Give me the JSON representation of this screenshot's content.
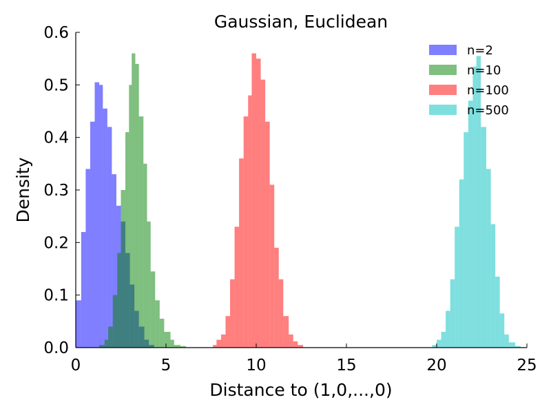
{
  "chart_data": {
    "type": "bar",
    "title": "Gaussian, Euclidean",
    "xlabel": "Distance to (1,0,...,0)",
    "ylabel": "Density",
    "xlim": [
      0,
      25
    ],
    "ylim": [
      0,
      0.6
    ],
    "xticks": [
      "0",
      "5",
      "10",
      "15",
      "20",
      "25"
    ],
    "yticks": [
      "0.0",
      "0.1",
      "0.2",
      "0.3",
      "0.4",
      "0.5",
      "0.6"
    ],
    "grid": false,
    "legend_position": "top-right",
    "series": [
      {
        "name": "n=2",
        "color": "#0000ff",
        "opacity": 0.5,
        "bins": [
          [
            0.0,
            0.3,
            0.09
          ],
          [
            0.3,
            0.55,
            0.22
          ],
          [
            0.55,
            0.8,
            0.34
          ],
          [
            0.8,
            1.05,
            0.43
          ],
          [
            1.05,
            1.3,
            0.505
          ],
          [
            1.3,
            1.5,
            0.5
          ],
          [
            1.5,
            1.75,
            0.455
          ],
          [
            1.75,
            2.0,
            0.42
          ],
          [
            2.0,
            2.25,
            0.33
          ],
          [
            2.25,
            2.5,
            0.27
          ],
          [
            2.5,
            2.75,
            0.24
          ],
          [
            2.75,
            3.0,
            0.18
          ],
          [
            3.0,
            3.25,
            0.12
          ],
          [
            3.25,
            3.5,
            0.07
          ],
          [
            3.5,
            3.8,
            0.04
          ],
          [
            3.8,
            4.05,
            0.015
          ],
          [
            4.05,
            4.35,
            0.005
          ]
        ]
      },
      {
        "name": "n=10",
        "color": "#008000",
        "opacity": 0.5,
        "bins": [
          [
            1.3,
            1.6,
            0.005
          ],
          [
            1.6,
            1.8,
            0.015
          ],
          [
            1.8,
            2.05,
            0.04
          ],
          [
            2.05,
            2.3,
            0.1
          ],
          [
            2.3,
            2.5,
            0.18
          ],
          [
            2.5,
            2.75,
            0.3
          ],
          [
            2.75,
            2.95,
            0.41
          ],
          [
            2.95,
            3.1,
            0.5
          ],
          [
            3.1,
            3.3,
            0.56
          ],
          [
            3.3,
            3.5,
            0.54
          ],
          [
            3.5,
            3.75,
            0.44
          ],
          [
            3.75,
            3.95,
            0.35
          ],
          [
            3.95,
            4.15,
            0.24
          ],
          [
            4.15,
            4.4,
            0.145
          ],
          [
            4.4,
            4.65,
            0.09
          ],
          [
            4.65,
            4.9,
            0.055
          ],
          [
            4.9,
            5.25,
            0.03
          ],
          [
            5.25,
            5.45,
            0.015
          ],
          [
            5.45,
            5.8,
            0.005
          ],
          [
            5.8,
            6.1,
            0.003
          ]
        ]
      },
      {
        "name": "n=100",
        "color": "#ff0000",
        "opacity": 0.5,
        "bins": [
          [
            7.6,
            7.8,
            0.005
          ],
          [
            7.8,
            8.05,
            0.015
          ],
          [
            8.05,
            8.3,
            0.025
          ],
          [
            8.3,
            8.55,
            0.06
          ],
          [
            8.55,
            8.8,
            0.13
          ],
          [
            8.8,
            9.05,
            0.23
          ],
          [
            9.05,
            9.3,
            0.36
          ],
          [
            9.3,
            9.55,
            0.44
          ],
          [
            9.55,
            9.75,
            0.48
          ],
          [
            9.75,
            10.0,
            0.56
          ],
          [
            10.0,
            10.25,
            0.55
          ],
          [
            10.25,
            10.5,
            0.51
          ],
          [
            10.5,
            10.75,
            0.43
          ],
          [
            10.75,
            11.0,
            0.31
          ],
          [
            11.0,
            11.25,
            0.19
          ],
          [
            11.25,
            11.5,
            0.13
          ],
          [
            11.5,
            11.8,
            0.06
          ],
          [
            11.8,
            12.05,
            0.025
          ],
          [
            12.05,
            12.3,
            0.012
          ],
          [
            12.3,
            12.6,
            0.005
          ]
        ]
      },
      {
        "name": "n=500",
        "color": "#00bfbf",
        "opacity": 0.5,
        "bins": [
          [
            19.75,
            20.0,
            0.005
          ],
          [
            20.0,
            20.25,
            0.015
          ],
          [
            20.25,
            20.5,
            0.03
          ],
          [
            20.5,
            20.75,
            0.07
          ],
          [
            20.75,
            21.0,
            0.13
          ],
          [
            21.0,
            21.25,
            0.23
          ],
          [
            21.25,
            21.5,
            0.32
          ],
          [
            21.5,
            21.75,
            0.41
          ],
          [
            21.75,
            22.0,
            0.47
          ],
          [
            22.0,
            22.2,
            0.535
          ],
          [
            22.2,
            22.45,
            0.555
          ],
          [
            22.45,
            22.75,
            0.42
          ],
          [
            22.75,
            23.0,
            0.34
          ],
          [
            23.0,
            23.25,
            0.235
          ],
          [
            23.25,
            23.5,
            0.135
          ],
          [
            23.5,
            23.75,
            0.065
          ],
          [
            23.75,
            24.0,
            0.025
          ],
          [
            24.0,
            24.35,
            0.01
          ],
          [
            24.35,
            24.65,
            0.003
          ]
        ]
      }
    ]
  }
}
